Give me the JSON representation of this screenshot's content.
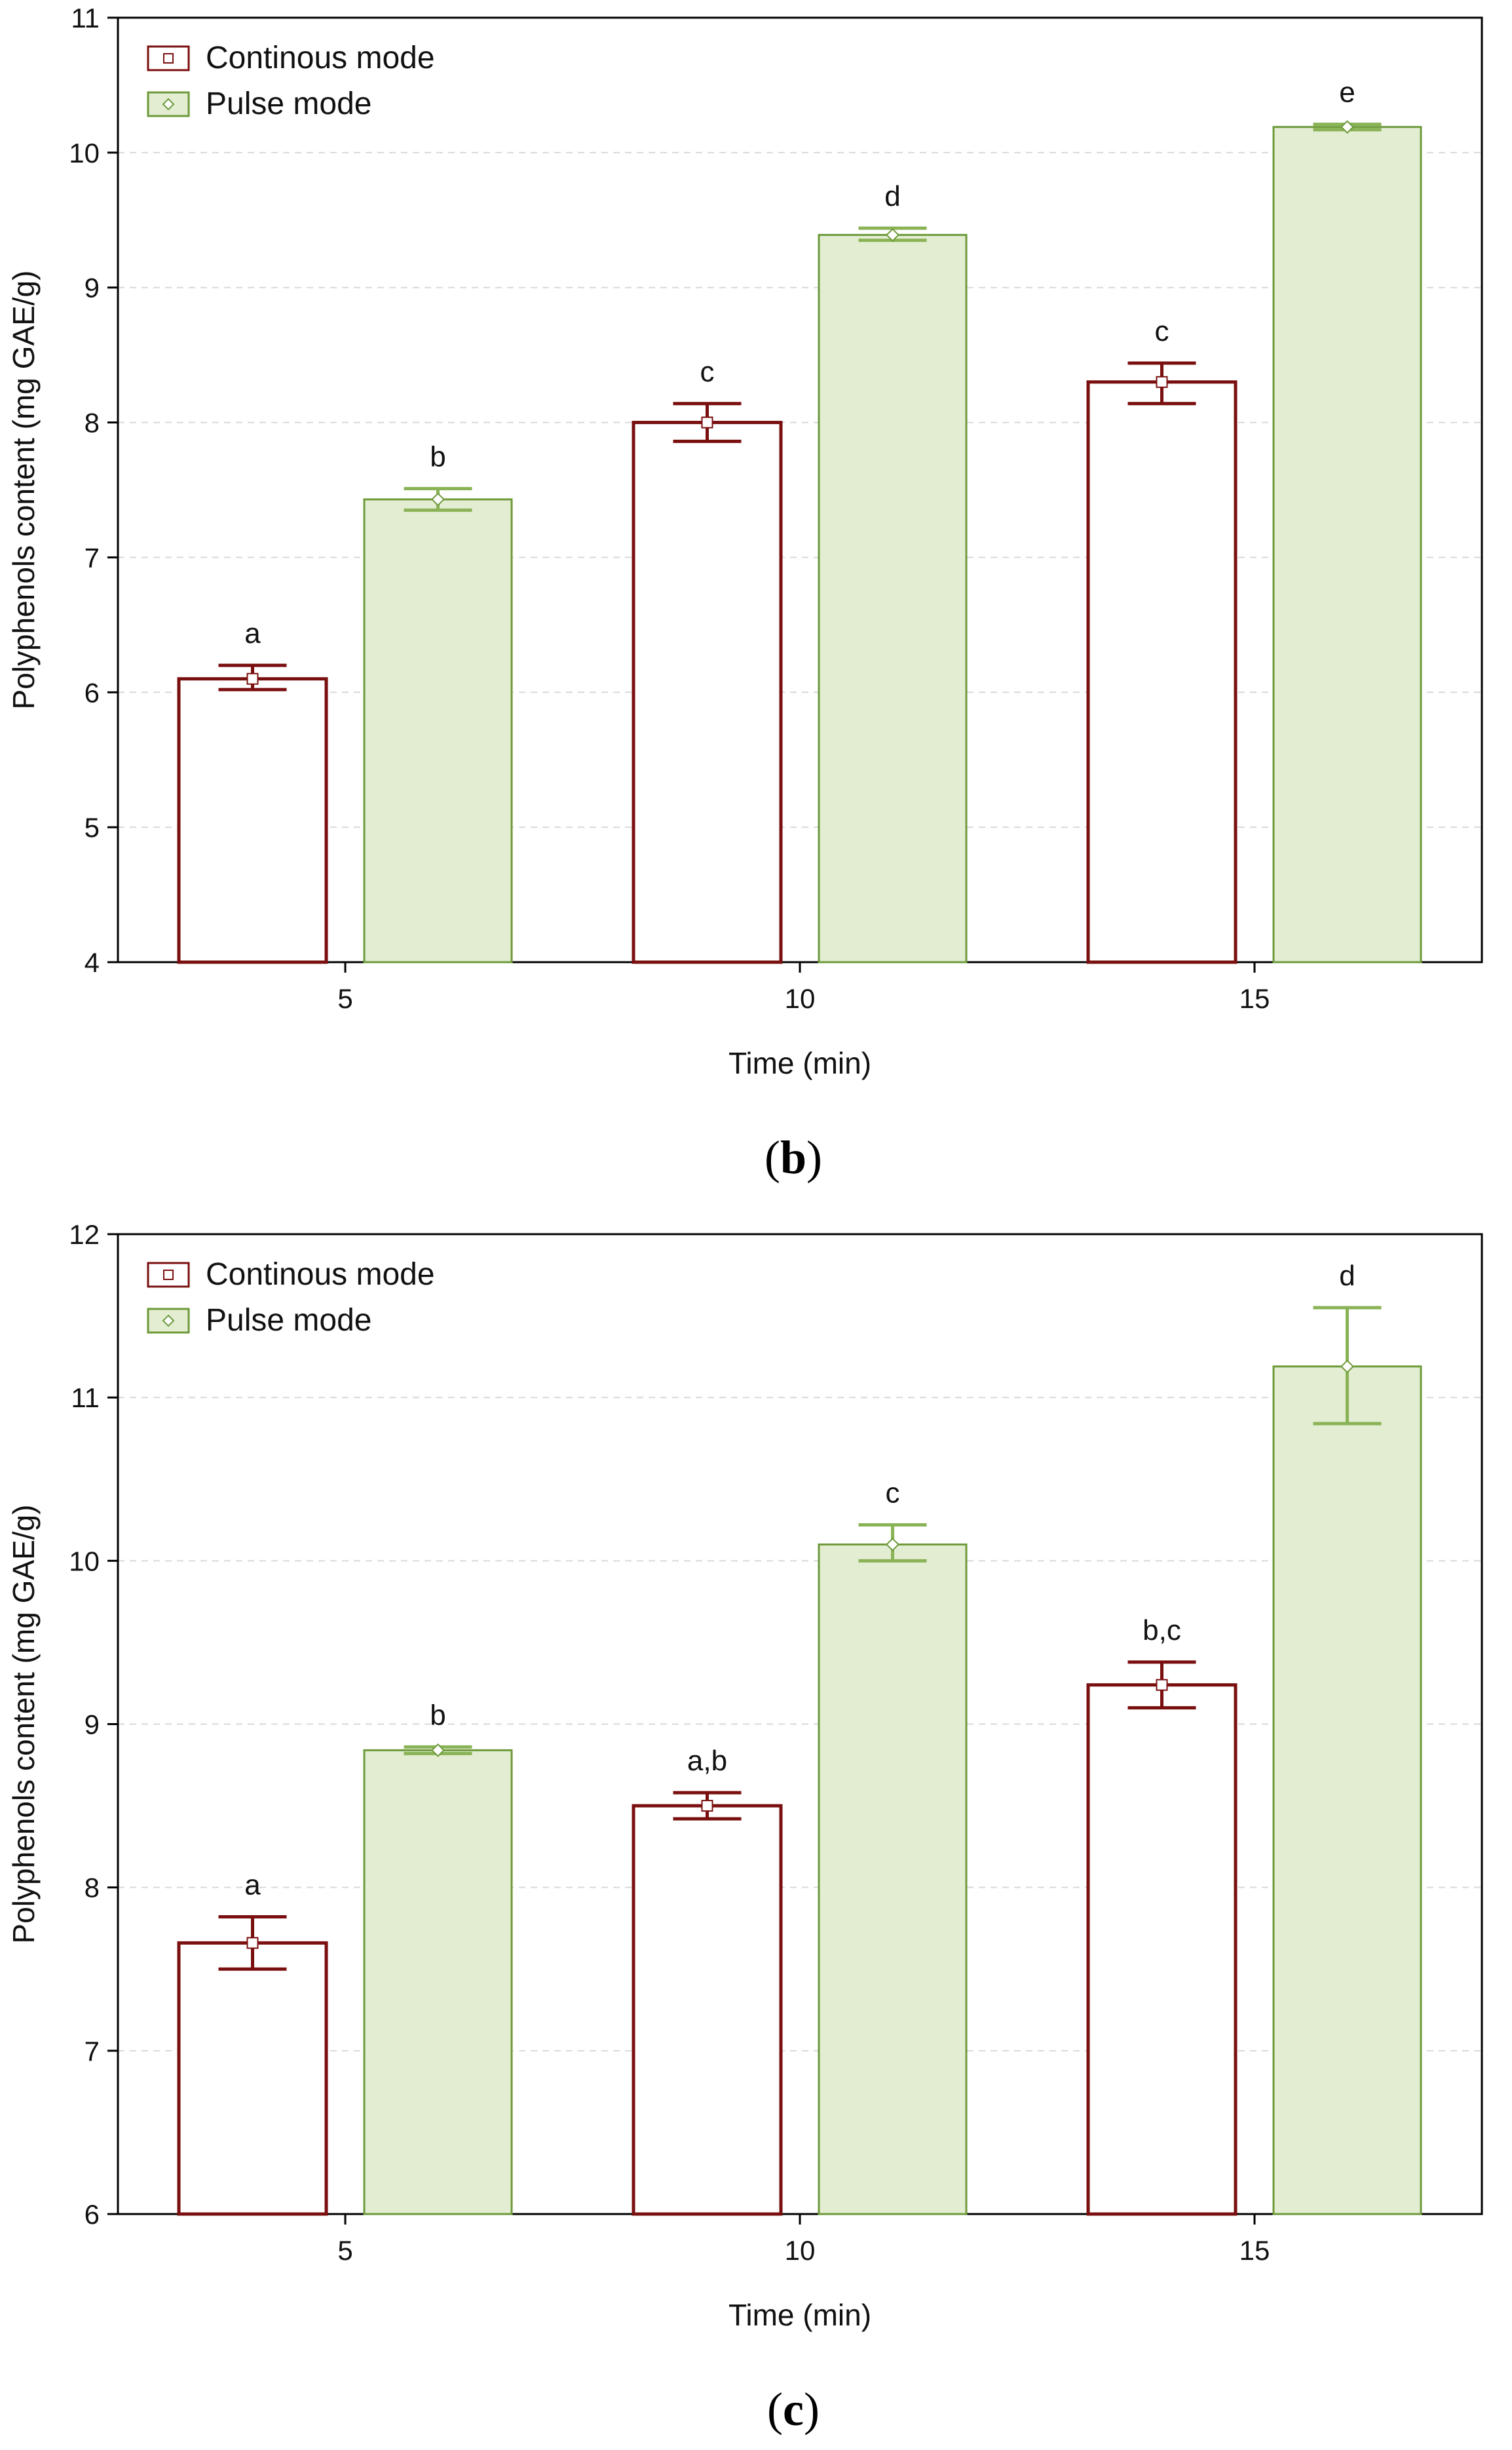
{
  "colors": {
    "continuous_stroke": "#7a0f0f",
    "continuous_fill": "#ffffff",
    "pulse_stroke": "#6d9a3a",
    "pulse_fill": "#e3edd2",
    "pulse_errorbar": "#8ab356",
    "grid": "#d9d9d9"
  },
  "chart_data": [
    {
      "type": "bar",
      "caption_letter": "b",
      "xlabel": "Time (min)",
      "ylabel": "Polyphenols content (mg GAE/g)",
      "categories": [
        "5",
        "10",
        "15"
      ],
      "ylim": [
        4,
        11
      ],
      "yticks": [
        4,
        5,
        6,
        7,
        8,
        9,
        10,
        11
      ],
      "grid": true,
      "legend_position": "top-left",
      "series": [
        {
          "name": "Continous mode",
          "values": [
            6.1,
            8.0,
            8.3
          ],
          "error_low": [
            6.02,
            7.86,
            8.14
          ],
          "error_high": [
            6.2,
            8.14,
            8.44
          ],
          "labels": [
            "a",
            "c",
            "c"
          ]
        },
        {
          "name": "Pulse mode",
          "values": [
            7.43,
            9.39,
            10.19
          ],
          "error_low": [
            7.35,
            9.35,
            10.17
          ],
          "error_high": [
            7.51,
            9.44,
            10.21
          ],
          "labels": [
            "b",
            "d",
            "e"
          ]
        }
      ]
    },
    {
      "type": "bar",
      "caption_letter": "c",
      "xlabel": "Time (min)",
      "ylabel": "Polyphenols content (mg GAE/g)",
      "categories": [
        "5",
        "10",
        "15"
      ],
      "ylim": [
        6,
        12
      ],
      "yticks": [
        6,
        7,
        8,
        9,
        10,
        11,
        12
      ],
      "grid": true,
      "legend_position": "top-left",
      "series": [
        {
          "name": "Continous mode",
          "values": [
            7.66,
            8.5,
            9.24
          ],
          "error_low": [
            7.5,
            8.42,
            9.1
          ],
          "error_high": [
            7.82,
            8.58,
            9.38
          ],
          "labels": [
            "a",
            "a,b",
            "b,c"
          ]
        },
        {
          "name": "Pulse mode",
          "values": [
            8.84,
            10.1,
            11.19
          ],
          "error_low": [
            8.82,
            10.0,
            10.84
          ],
          "error_high": [
            8.86,
            10.22,
            11.55
          ],
          "labels": [
            "b",
            "c",
            "d"
          ]
        }
      ]
    }
  ]
}
